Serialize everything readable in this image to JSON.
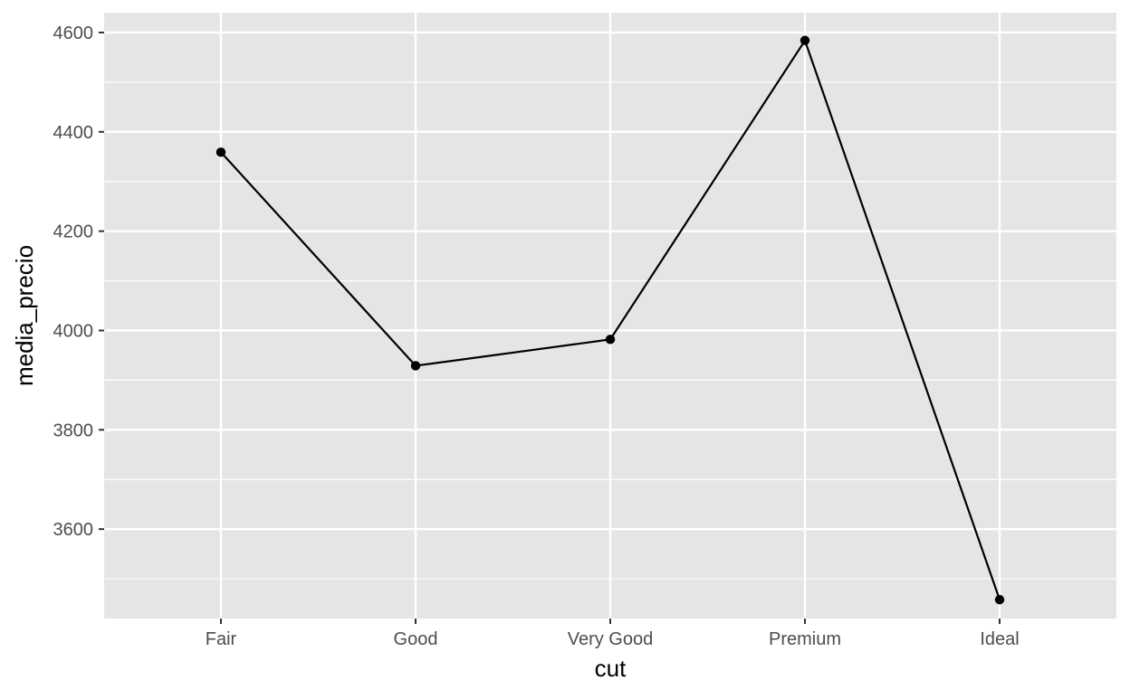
{
  "chart_data": {
    "type": "line",
    "title": "",
    "xlabel": "cut",
    "ylabel": "media_precio",
    "categories": [
      "Fair",
      "Good",
      "Very Good",
      "Premium",
      "Ideal"
    ],
    "series": [
      {
        "values": [
          4359,
          3929,
          3982,
          4584,
          3458
        ]
      }
    ],
    "ylim": [
      3420,
      4640
    ],
    "yticks": [
      3600,
      3800,
      4000,
      4200,
      4400,
      4600
    ],
    "ytick_labels": [
      "3600",
      "3800",
      "4000",
      "4200",
      "4400",
      "4600"
    ],
    "grid": true,
    "markers": true,
    "colors": {
      "panel_background": "#e5e5e5",
      "grid_major": "#ffffff",
      "line": "#000000",
      "tick_text": "#4d4d4d",
      "axis_title": "#000000"
    }
  }
}
